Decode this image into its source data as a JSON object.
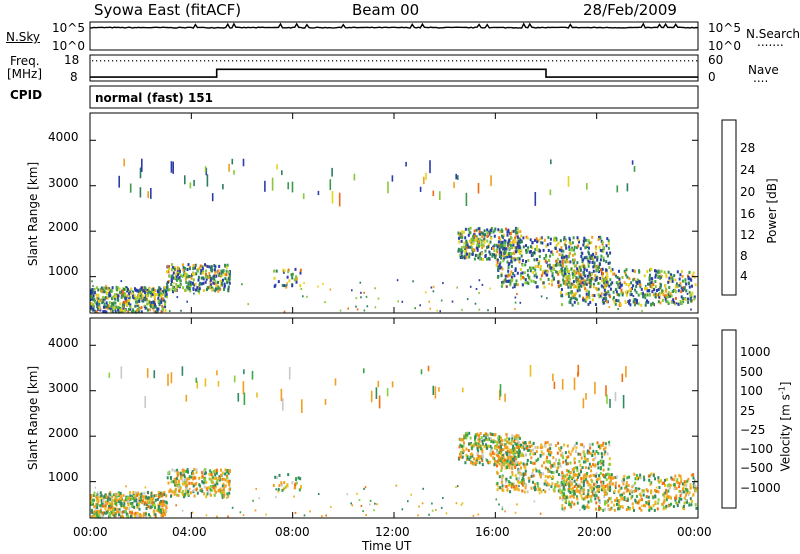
{
  "header": {
    "title": "Syowa East (fitACF)",
    "beam": "Beam 00",
    "date": "28/Feb/2009"
  },
  "nsky_panel": {
    "left_label": "N.Sky",
    "right_label": "N.Search",
    "tick_top": "10^5",
    "tick_bottom": "10^0",
    "right_legend_marker": "......."
  },
  "freq_panel": {
    "left_label_line1": "Freq.",
    "left_label_line2": "[MHz]",
    "left_tick_top": "18",
    "left_tick_bottom": "8",
    "right_label": "Nave",
    "right_tick_top": "60",
    "right_tick_bottom": "0",
    "right_legend_marker": "...."
  },
  "cpid": {
    "label": "CPID",
    "value": "normal (fast) 151"
  },
  "axes": {
    "ylabel": "Slant Range [km]",
    "xlabel": "Time UT",
    "yticks": [
      "1000",
      "2000",
      "3000",
      "4000"
    ],
    "xticks": [
      "00:00",
      "04:00",
      "08:00",
      "12:00",
      "16:00",
      "20:00",
      "00:00"
    ]
  },
  "power_colorbar": {
    "label": "Power [dB]",
    "ticks": [
      "4",
      "8",
      "12",
      "16",
      "20",
      "24",
      "28"
    ],
    "colors": [
      "#0000ff",
      "#2a3da8",
      "#2e7d5e",
      "#3c9a4a",
      "#88c83a",
      "#e8d21e",
      "#f0a020",
      "#f06a10",
      "#e02a10",
      "#d00000"
    ]
  },
  "velocity_colorbar": {
    "label_main": "Velocity [m s",
    "label_sup": "-1",
    "label_end": "]",
    "ticks": [
      "1000",
      "500",
      "100",
      "25",
      "−25",
      "−100",
      "−500",
      "−1000"
    ],
    "colors": [
      "#2040c0",
      "#3a6ec0",
      "#2f8a60",
      "#3aa848",
      "#88d040",
      "#c8c8c8",
      "#e8c020",
      "#f0a020",
      "#f07010",
      "#e03010",
      "#e00000"
    ]
  },
  "chart_data": {
    "type": "heatmap",
    "title": "Syowa East (fitACF)",
    "xlabel": "Time UT",
    "ylabel": "Slant Range [km]",
    "x_range": [
      "00:00",
      "24:00"
    ],
    "y_range": [
      200,
      4600
    ],
    "panels": [
      {
        "name": "Power [dB]",
        "color_range": [
          0,
          30
        ],
        "regions": [
          {
            "t_start": 0.0,
            "t_end": 3.0,
            "range_km": [
              200,
              800
            ],
            "dominant": "blue/yellow"
          },
          {
            "t_start": 3.0,
            "t_end": 5.5,
            "range_km": [
              700,
              1300
            ],
            "dominant": "blue/green/yellow"
          },
          {
            "t_start": 14.5,
            "t_end": 23.9,
            "range_km": [
              500,
              2100
            ],
            "dominant": "blue/green/orange"
          },
          {
            "t_start": 0.5,
            "t_end": 21.5,
            "range_km": [
              2800,
              3600
            ],
            "dominant": "sparse multicolor"
          }
        ]
      },
      {
        "name": "Velocity [m s-1]",
        "color_range": [
          -1000,
          1000
        ],
        "regions": [
          {
            "t_start": 0.0,
            "t_end": 3.0,
            "range_km": [
              200,
              800
            ],
            "dominant": "green/orange"
          },
          {
            "t_start": 3.0,
            "t_end": 5.5,
            "range_km": [
              700,
              1400
            ],
            "dominant": "orange"
          },
          {
            "t_start": 14.5,
            "t_end": 23.9,
            "range_km": [
              500,
              2100
            ],
            "dominant": "orange/green"
          },
          {
            "t_start": 0.5,
            "t_end": 21.5,
            "range_km": [
              2800,
              3600
            ],
            "dominant": "sparse multicolor"
          }
        ]
      }
    ],
    "nsky_panel": {
      "type": "line",
      "ylim_log10": [
        0,
        5
      ],
      "typical_log10": 4.0
    },
    "freq_panel": {
      "type": "step",
      "ylim": [
        8,
        18
      ],
      "segments": [
        {
          "t_start": 0.0,
          "t_end": 5.0,
          "freq_mhz": 9.5
        },
        {
          "t_start": 5.0,
          "t_end": 18.0,
          "freq_mhz": 12.5
        },
        {
          "t_start": 18.0,
          "t_end": 24.0,
          "freq_mhz": 9.5
        }
      ],
      "nave_dotted_level": 48
    }
  }
}
